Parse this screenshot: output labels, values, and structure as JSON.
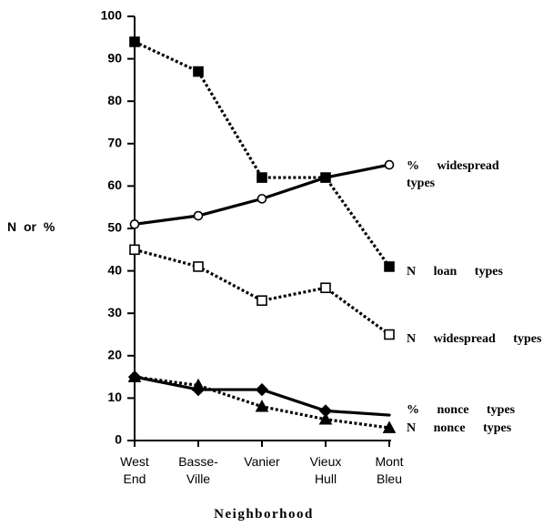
{
  "chart_data": {
    "type": "line",
    "categories": [
      "West End",
      "Basse-Ville",
      "Vanier",
      "Vieux Hull",
      "Mont Bleu"
    ],
    "x_label": "Neighborhood",
    "y_label": "N or %",
    "ylim": [
      0,
      100
    ],
    "yticks": [
      0,
      10,
      20,
      30,
      40,
      50,
      60,
      70,
      80,
      90,
      100
    ],
    "series": [
      {
        "name": "% widespread types",
        "color": "#000000",
        "line_style": "solid",
        "marker": "open-circle",
        "values": [
          51,
          53,
          57,
          62,
          65
        ]
      },
      {
        "name": "N loan types",
        "color": "#000000",
        "line_style": "dotted",
        "marker": "filled-square",
        "values": [
          94,
          87,
          62,
          62,
          41
        ]
      },
      {
        "name": "N widespread types",
        "color": "#000000",
        "line_style": "dotted",
        "marker": "open-square",
        "values": [
          45,
          41,
          33,
          36,
          25
        ]
      },
      {
        "name": "% nonce types",
        "color": "#000000",
        "line_style": "solid",
        "marker": "filled-diamond",
        "values": [
          15,
          12,
          12,
          7,
          6
        ]
      },
      {
        "name": "N nonce types",
        "color": "#000000",
        "line_style": "dotted",
        "marker": "filled-triangle",
        "values": [
          15,
          13,
          8,
          5,
          3
        ]
      }
    ]
  }
}
